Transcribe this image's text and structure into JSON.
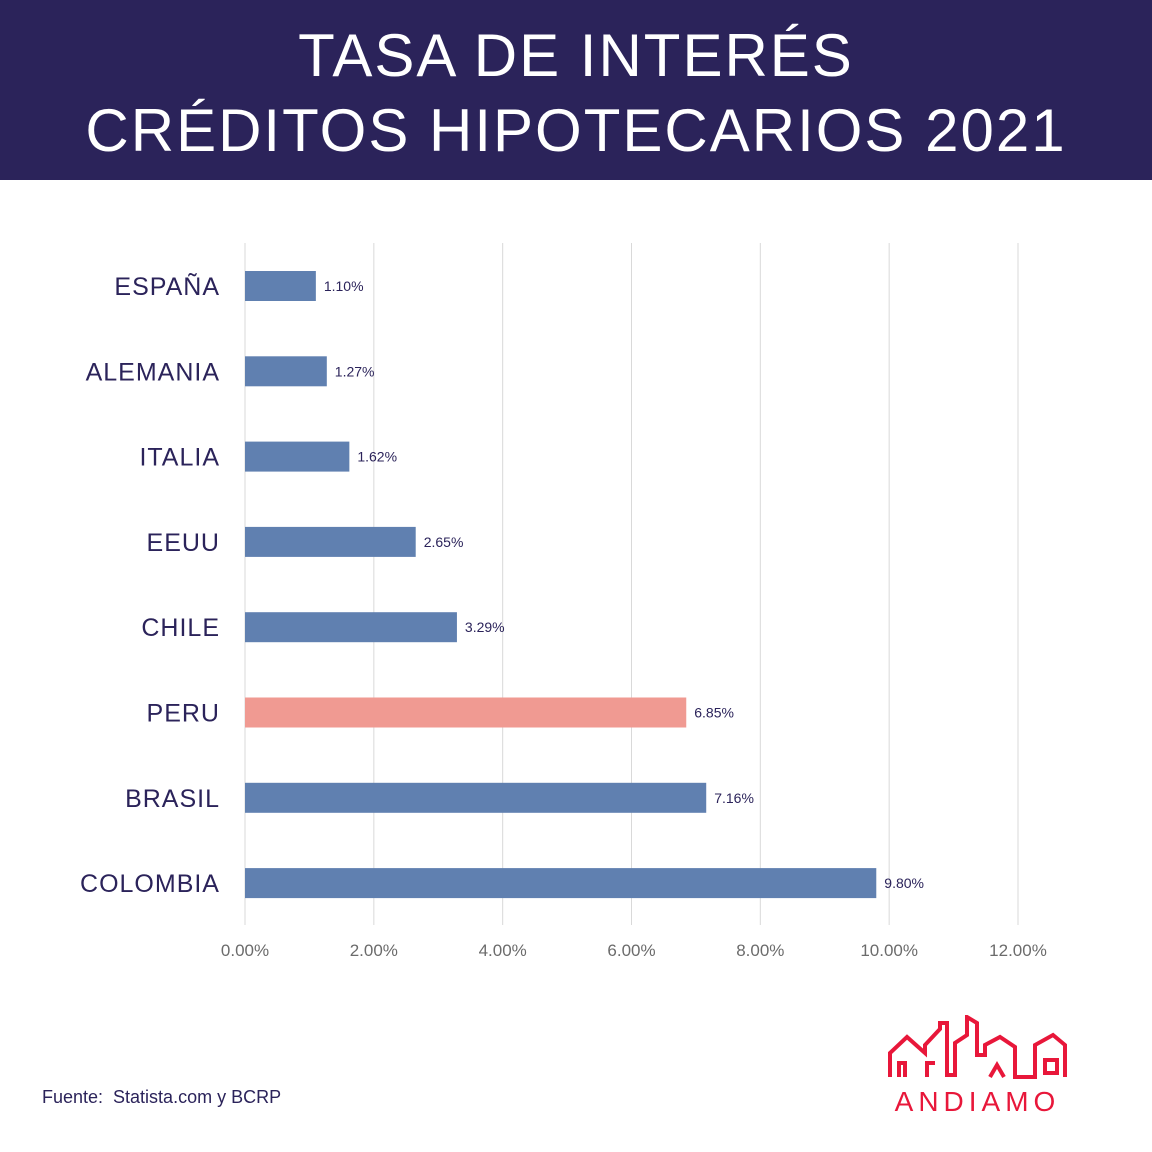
{
  "header": {
    "title_line1": "TASA DE INTERÉS",
    "title_line2": "CRÉDITOS HIPOTECARIOS 2021"
  },
  "chart_data": {
    "type": "bar",
    "orientation": "horizontal",
    "categories": [
      "ESPAÑA",
      "ALEMANIA",
      "ITALIA",
      "EEUU",
      "CHILE",
      "PERU",
      "BRASIL",
      "COLOMBIA"
    ],
    "values": [
      1.1,
      1.27,
      1.62,
      2.65,
      3.29,
      6.85,
      7.16,
      9.8
    ],
    "value_labels": [
      "1.10%",
      "1.27%",
      "1.62%",
      "2.65%",
      "3.29%",
      "6.85%",
      "7.16%",
      "9.80%"
    ],
    "xlim": [
      0,
      12
    ],
    "xticks": [
      0,
      2,
      4,
      6,
      8,
      10,
      12
    ],
    "xtick_labels": [
      "0.00%",
      "2.00%",
      "4.00%",
      "6.00%",
      "8.00%",
      "10.00%",
      "12.00%"
    ],
    "grid": "vertical",
    "colors": {
      "default": "#6080b0",
      "highlight": "#f09a92"
    },
    "highlight_category": "PERU"
  },
  "footer": {
    "source": "Fuente:  Statista.com y BCRP",
    "logo_text": "ANDIAMO"
  },
  "theme": {
    "header_bg": "#2b235a",
    "brand_red": "#e8173a"
  }
}
